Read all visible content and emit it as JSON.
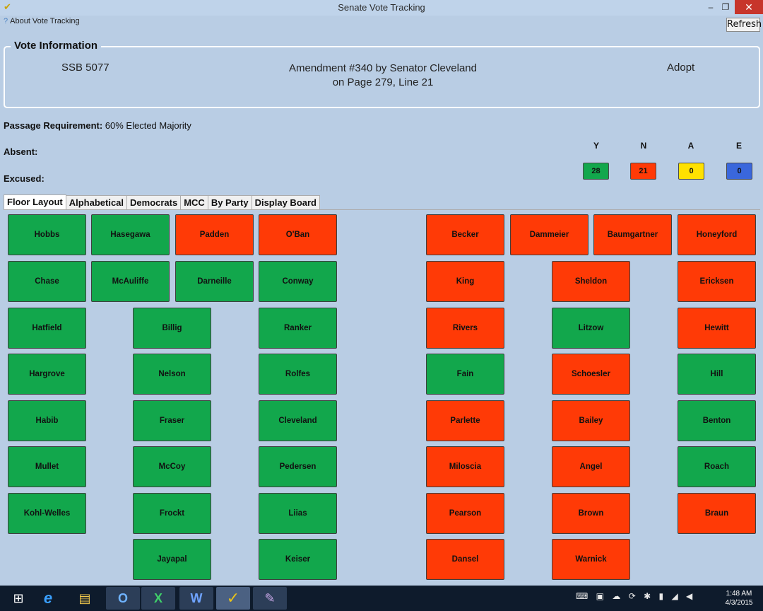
{
  "window": {
    "title": "Senate Vote Tracking",
    "app_icon": "checkmark-icon"
  },
  "menu": {
    "about": "About Vote Tracking"
  },
  "toolbar": {
    "refresh": "Refresh"
  },
  "vote_info": {
    "legend": "Vote Information",
    "bill": "SSB 5077",
    "amendment_line1": "Amendment #340 by Senator Cleveland",
    "amendment_line2": "on Page 279, Line 21",
    "motion": "Adopt"
  },
  "requirement": {
    "label": "Passage Requirement:",
    "value": "60% Elected Majority"
  },
  "absent": {
    "label": "Absent:"
  },
  "excused": {
    "label": "Excused:"
  },
  "tally": [
    {
      "label": "Y",
      "value": "28",
      "color": "#12a74c"
    },
    {
      "label": "N",
      "value": "21",
      "color": "#ff3a06"
    },
    {
      "label": "A",
      "value": "0",
      "color": "#ffe100"
    },
    {
      "label": "E",
      "value": "0",
      "color": "#3a67dc"
    }
  ],
  "tabs": [
    "Floor Layout",
    "Alphabetical",
    "Democrats",
    "MCC",
    "By Party",
    "Display Board"
  ],
  "vote_colors": {
    "Y": "#12a74c",
    "N": "#ff3a06"
  },
  "seats": [
    {
      "name": "Hobbs",
      "vote": "Y"
    },
    {
      "name": "Hasegawa",
      "vote": "Y"
    },
    {
      "name": "Padden",
      "vote": "N"
    },
    {
      "name": "O'Ban",
      "vote": "N"
    },
    {
      "name": "Chase",
      "vote": "Y"
    },
    {
      "name": "McAuliffe",
      "vote": "Y"
    },
    {
      "name": "Darneille",
      "vote": "Y"
    },
    {
      "name": "Conway",
      "vote": "Y"
    },
    {
      "name": "Hatfield",
      "vote": "Y"
    },
    {
      "name": "Billig",
      "vote": "Y"
    },
    {
      "name": "Ranker",
      "vote": "Y"
    },
    {
      "name": "Hargrove",
      "vote": "Y"
    },
    {
      "name": "Nelson",
      "vote": "Y"
    },
    {
      "name": "Rolfes",
      "vote": "Y"
    },
    {
      "name": "Habib",
      "vote": "Y"
    },
    {
      "name": "Fraser",
      "vote": "Y"
    },
    {
      "name": "Cleveland",
      "vote": "Y"
    },
    {
      "name": "Mullet",
      "vote": "Y"
    },
    {
      "name": "McCoy",
      "vote": "Y"
    },
    {
      "name": "Pedersen",
      "vote": "Y"
    },
    {
      "name": "Kohl-Welles",
      "vote": "Y"
    },
    {
      "name": "Frockt",
      "vote": "Y"
    },
    {
      "name": "Liias",
      "vote": "Y"
    },
    {
      "name": "Jayapal",
      "vote": "Y"
    },
    {
      "name": "Keiser",
      "vote": "Y"
    },
    {
      "name": "Becker",
      "vote": "N"
    },
    {
      "name": "Dammeier",
      "vote": "N"
    },
    {
      "name": "Baumgartner",
      "vote": "N"
    },
    {
      "name": "Honeyford",
      "vote": "N"
    },
    {
      "name": "King",
      "vote": "N"
    },
    {
      "name": "Sheldon",
      "vote": "N"
    },
    {
      "name": "Ericksen",
      "vote": "N"
    },
    {
      "name": "Rivers",
      "vote": "N"
    },
    {
      "name": "Litzow",
      "vote": "Y"
    },
    {
      "name": "Hewitt",
      "vote": "N"
    },
    {
      "name": "Fain",
      "vote": "Y"
    },
    {
      "name": "Schoesler",
      "vote": "N"
    },
    {
      "name": "Hill",
      "vote": "Y"
    },
    {
      "name": "Parlette",
      "vote": "N"
    },
    {
      "name": "Bailey",
      "vote": "N"
    },
    {
      "name": "Benton",
      "vote": "Y"
    },
    {
      "name": "Miloscia",
      "vote": "N"
    },
    {
      "name": "Angel",
      "vote": "N"
    },
    {
      "name": "Roach",
      "vote": "Y"
    },
    {
      "name": "Pearson",
      "vote": "N"
    },
    {
      "name": "Brown",
      "vote": "N"
    },
    {
      "name": "Braun",
      "vote": "N"
    },
    {
      "name": "Dansel",
      "vote": "N"
    },
    {
      "name": "Warnick",
      "vote": "N"
    }
  ],
  "taskbar": {
    "apps": [
      {
        "name": "start-icon",
        "glyph": "⊞"
      },
      {
        "name": "internet-explorer-icon",
        "glyph": "e"
      },
      {
        "name": "file-explorer-icon",
        "glyph": "▤"
      },
      {
        "name": "outlook-icon",
        "glyph": "O"
      },
      {
        "name": "excel-icon",
        "glyph": "X"
      },
      {
        "name": "word-icon",
        "glyph": "W"
      },
      {
        "name": "vote-tracking-icon",
        "glyph": "✓"
      },
      {
        "name": "paint-icon",
        "glyph": "✎"
      }
    ],
    "time": "1:48 AM",
    "date": "4/3/2015"
  }
}
